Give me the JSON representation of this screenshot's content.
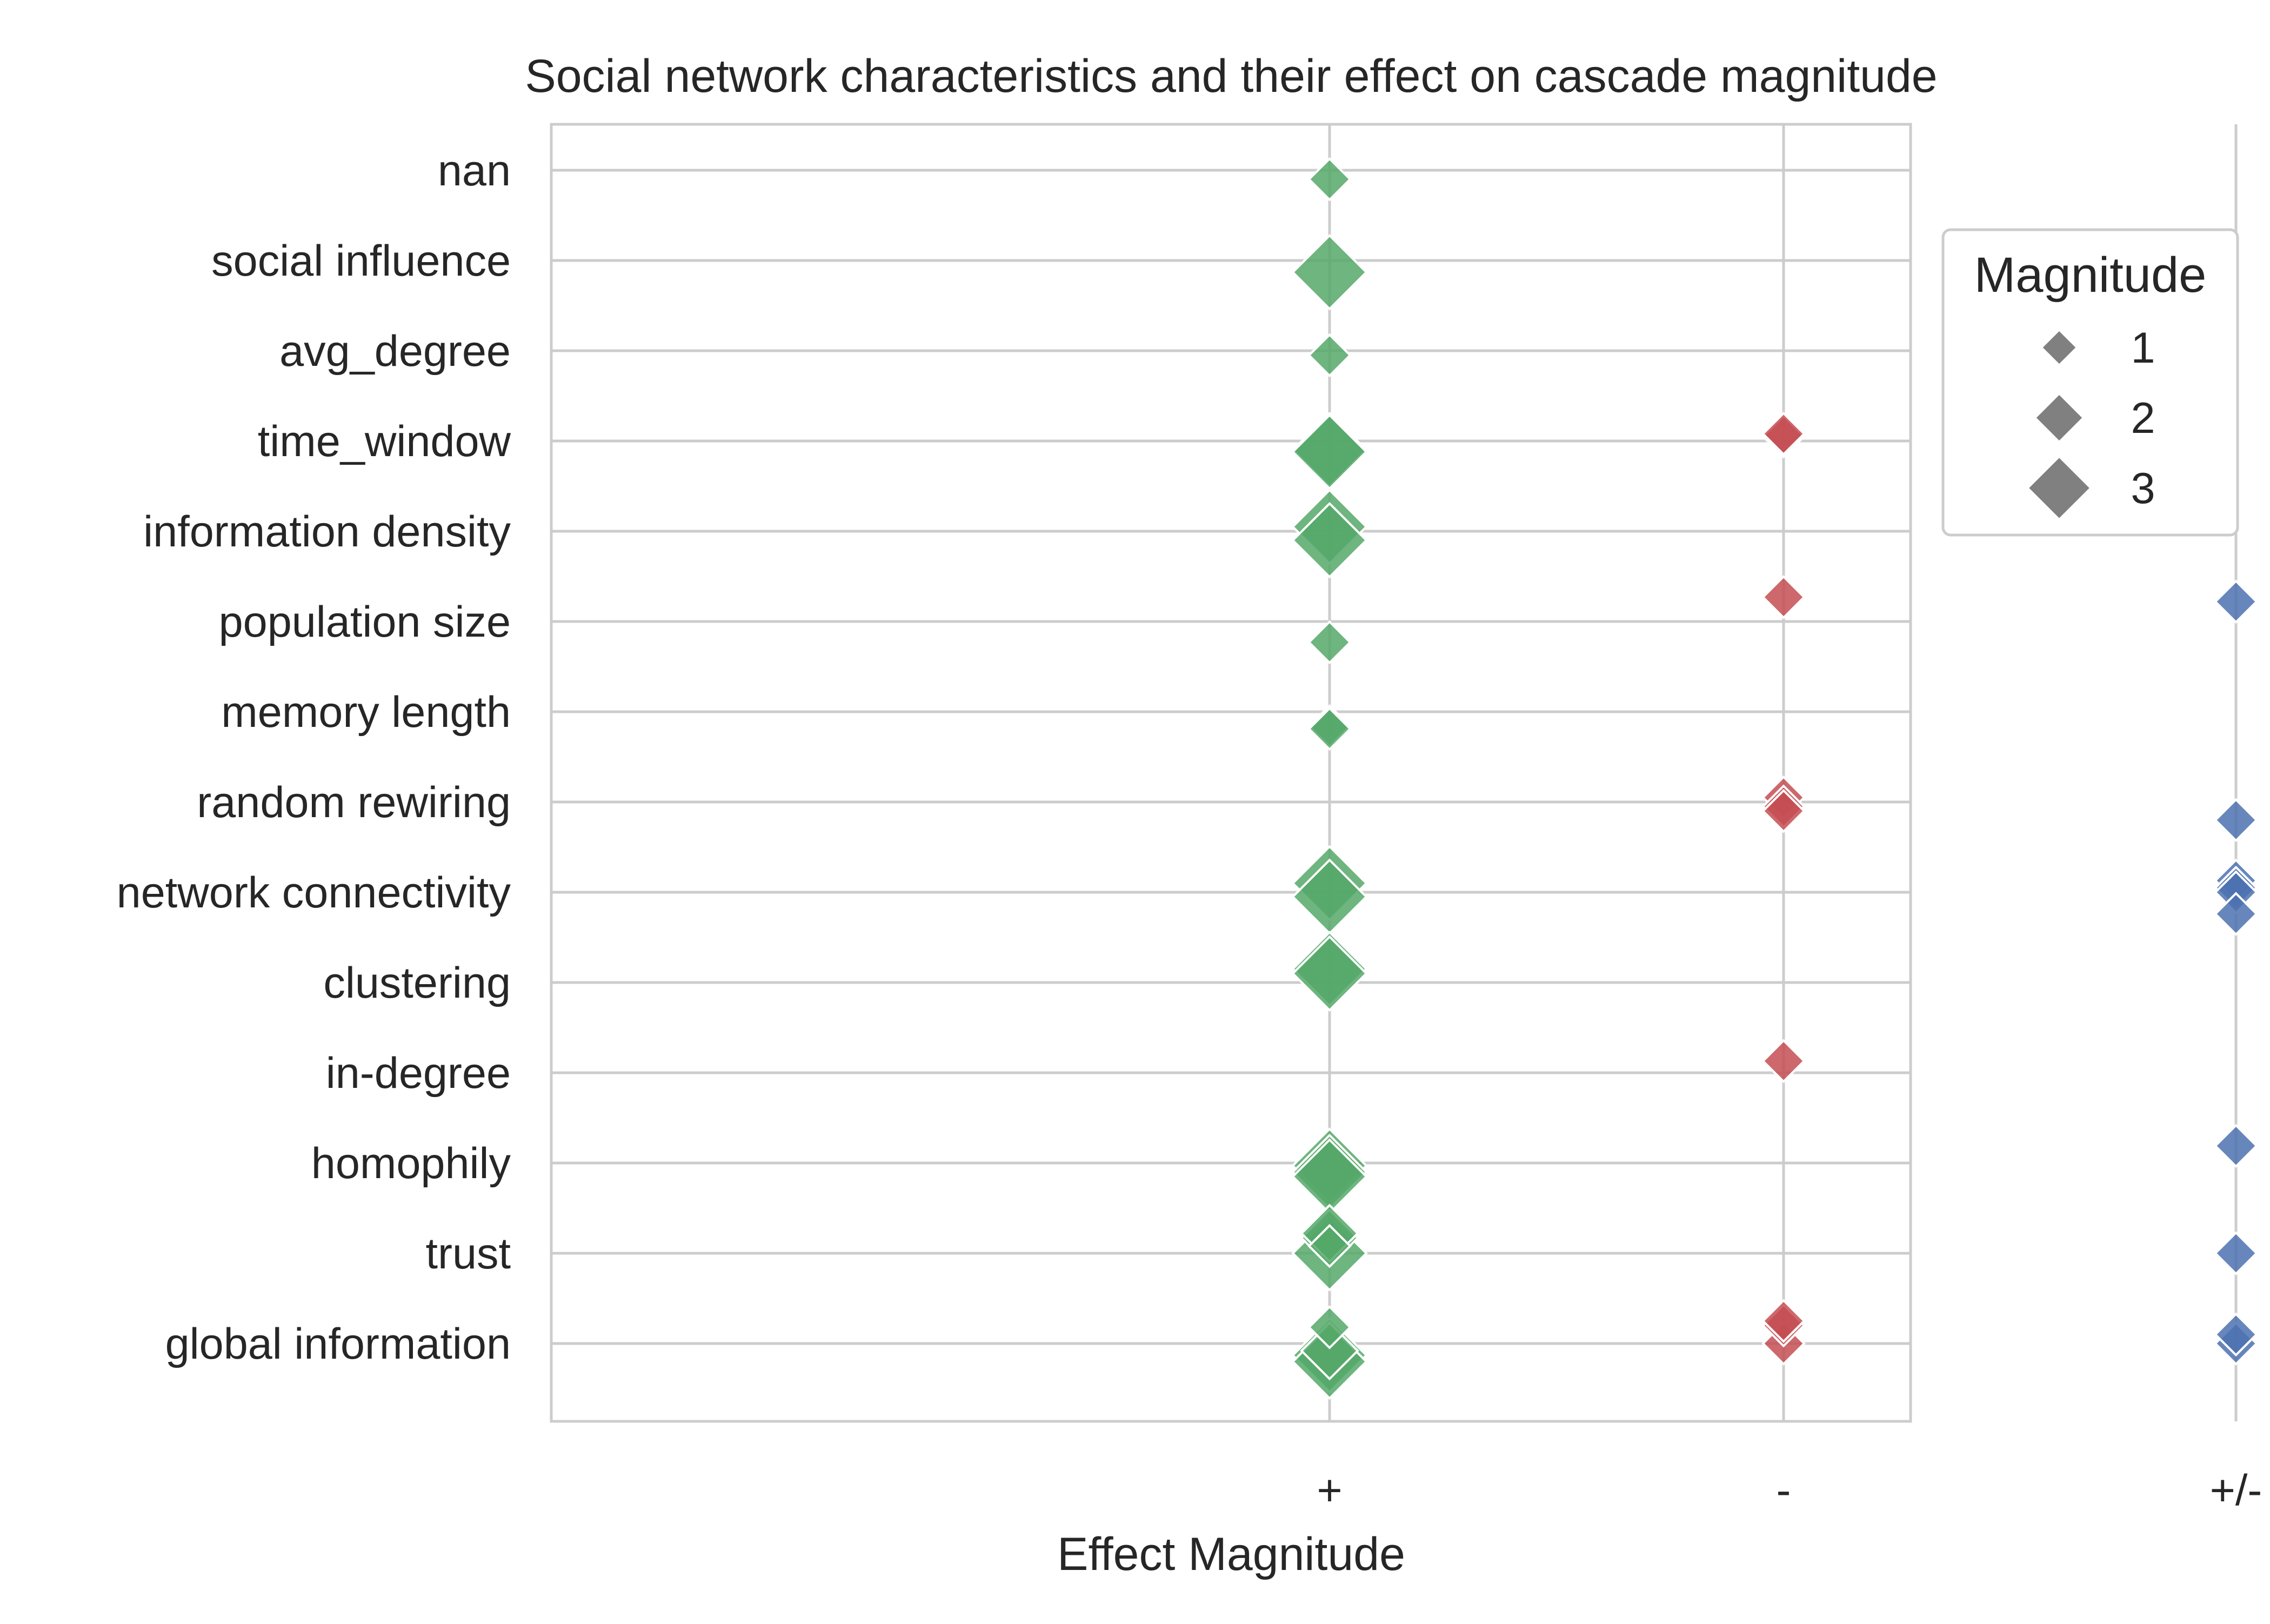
{
  "chart_data": {
    "type": "scatter",
    "title": "Social network characteristics and their effect on cascade magnitude",
    "xlabel": "Effect Magnitude",
    "ylabel": "",
    "x_categories": [
      "+",
      "-",
      "+/-"
    ],
    "y_categories": [
      "nan",
      "social influence",
      "avg_degree",
      "time_window",
      "information density",
      "population size",
      "memory length",
      "random rewiring",
      "network connectivity",
      "clustering",
      "in-degree",
      "homophily",
      "trust",
      "global information"
    ],
    "grid": true,
    "legend": {
      "title": "Magnitude",
      "placement": "right, outside top",
      "entries": [
        {
          "label": "1",
          "magnitude": 1
        },
        {
          "label": "2",
          "magnitude": 2
        },
        {
          "label": "3",
          "magnitude": 3
        }
      ]
    },
    "colors": {
      "+": "#55a868",
      "-": "#c44e52",
      "+/-": "#4c72b0"
    },
    "points": [
      {
        "y": "nan",
        "x": "+",
        "magnitude": 1,
        "jitter": 0.1
      },
      {
        "y": "social influence",
        "x": "+",
        "magnitude": 3,
        "jitter": 0.13
      },
      {
        "y": "avg_degree",
        "x": "+",
        "magnitude": 1,
        "jitter": 0.05
      },
      {
        "y": "time_window",
        "x": "+",
        "magnitude": 3,
        "jitter": 0.1
      },
      {
        "y": "time_window",
        "x": "+",
        "magnitude": 3,
        "jitter": 0.12
      },
      {
        "y": "time_window",
        "x": "-",
        "magnitude": 1,
        "jitter": -0.05
      },
      {
        "y": "time_window",
        "x": "-",
        "magnitude": 1,
        "jitter": -0.08
      },
      {
        "y": "information density",
        "x": "+",
        "magnitude": 3,
        "jitter": -0.05
      },
      {
        "y": "information density",
        "x": "+",
        "magnitude": 3,
        "jitter": 0.1
      },
      {
        "y": "population size",
        "x": "+",
        "magnitude": 1,
        "jitter": 0.23
      },
      {
        "y": "population size",
        "x": "-",
        "magnitude": 1,
        "jitter": -0.27
      },
      {
        "y": "population size",
        "x": "+/-",
        "magnitude": 1,
        "jitter": -0.22
      },
      {
        "y": "memory length",
        "x": "+",
        "magnitude": 1,
        "jitter": 0.16
      },
      {
        "y": "memory length",
        "x": "+",
        "magnitude": 1,
        "jitter": 0.19
      },
      {
        "y": "random rewiring",
        "x": "-",
        "magnitude": 1,
        "jitter": -0.05
      },
      {
        "y": "random rewiring",
        "x": "-",
        "magnitude": 1,
        "jitter": 0.05
      },
      {
        "y": "random rewiring",
        "x": "-",
        "magnitude": 1,
        "jitter": 0.1
      },
      {
        "y": "random rewiring",
        "x": "+/-",
        "magnitude": 1,
        "jitter": 0.2
      },
      {
        "y": "network connectivity",
        "x": "+",
        "magnitude": 3,
        "jitter": -0.1
      },
      {
        "y": "network connectivity",
        "x": "+",
        "magnitude": 3,
        "jitter": 0.05
      },
      {
        "y": "network connectivity",
        "x": "+/-",
        "magnitude": 1,
        "jitter": -0.13
      },
      {
        "y": "network connectivity",
        "x": "+/-",
        "magnitude": 1,
        "jitter": -0.05
      },
      {
        "y": "network connectivity",
        "x": "+/-",
        "magnitude": 1,
        "jitter": 0.0
      },
      {
        "y": "network connectivity",
        "x": "+/-",
        "magnitude": 1,
        "jitter": 0.24
      },
      {
        "y": "clustering",
        "x": "+",
        "magnitude": 3,
        "jitter": -0.15
      },
      {
        "y": "clustering",
        "x": "+",
        "magnitude": 3,
        "jitter": -0.1
      },
      {
        "y": "in-degree",
        "x": "-",
        "magnitude": 1,
        "jitter": -0.13
      },
      {
        "y": "homophily",
        "x": "+",
        "magnitude": 3,
        "jitter": 0.03
      },
      {
        "y": "homophily",
        "x": "+",
        "magnitude": 3,
        "jitter": 0.1
      },
      {
        "y": "homophily",
        "x": "+",
        "magnitude": 3,
        "jitter": 0.15
      },
      {
        "y": "homophily",
        "x": "+/-",
        "magnitude": 1,
        "jitter": -0.19
      },
      {
        "y": "trust",
        "x": "+",
        "magnitude": 3,
        "jitter": 0.0
      },
      {
        "y": "trust",
        "x": "+",
        "magnitude": 2,
        "jitter": -0.17
      },
      {
        "y": "trust",
        "x": "+",
        "magnitude": 2,
        "jitter": -0.22
      },
      {
        "y": "trust",
        "x": "+",
        "magnitude": 1,
        "jitter": -0.08
      },
      {
        "y": "trust",
        "x": "+/-",
        "magnitude": 1,
        "jitter": 0.0
      },
      {
        "y": "global information",
        "x": "+",
        "magnitude": 3,
        "jitter": 0.13
      },
      {
        "y": "global information",
        "x": "+",
        "magnitude": 3,
        "jitter": 0.2
      },
      {
        "y": "global information",
        "x": "+",
        "magnitude": 2,
        "jitter": 0.08
      },
      {
        "y": "global information",
        "x": "+",
        "magnitude": 1,
        "jitter": -0.18
      },
      {
        "y": "global information",
        "x": "-",
        "magnitude": 1,
        "jitter": 0.0
      },
      {
        "y": "global information",
        "x": "-",
        "magnitude": 1,
        "jitter": -0.2
      },
      {
        "y": "global information",
        "x": "-",
        "magnitude": 1,
        "jitter": -0.25
      },
      {
        "y": "global information",
        "x": "+/-",
        "magnitude": 1,
        "jitter": 0.0
      },
      {
        "y": "global information",
        "x": "+/-",
        "magnitude": 1,
        "jitter": -0.1
      }
    ]
  }
}
